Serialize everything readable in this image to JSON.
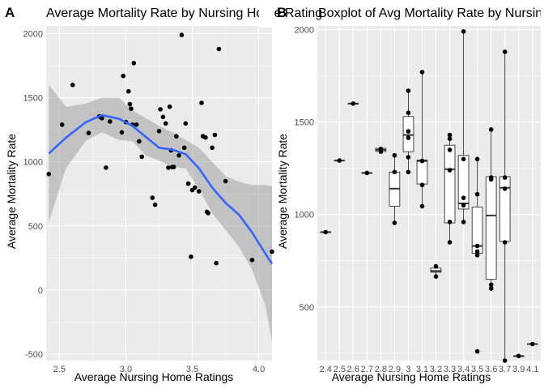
{
  "panels": [
    {
      "tag": "A",
      "title": "Average Mortality Rate by Nursing Home Rating",
      "xlabel": "Average Nursing Home Ratings",
      "ylabel": "Average Mortality Rate",
      "x_ticks": [
        "2.5",
        "3.0",
        "3.5",
        "4.0"
      ],
      "y_ticks": [
        "-500",
        "0",
        "500",
        "1000",
        "1500",
        "2000"
      ]
    },
    {
      "tag": "B",
      "title": "Boxplot of Avg Mortality Rate by Nursing Home Rating",
      "xlabel": "Average Nursing Home Ratings",
      "ylabel": "Average Mortality Rate",
      "y_ticks": [
        "500",
        "1000",
        "1500",
        "2000"
      ]
    }
  ],
  "colors": {
    "panel_background": "#ebebeb",
    "grid_major": "#ffffff",
    "point": "#000000",
    "smooth_line": "#3366ff",
    "confidence_band": "#999999",
    "box_fill": "#ffffff"
  },
  "chart_data": [
    {
      "type": "scatter",
      "geom": "point + loess smooth with 95% confidence band",
      "xlim": [
        2.4,
        4.1
      ],
      "ylim": [
        -550,
        2060
      ],
      "x_ticks": [
        2.5,
        3.0,
        3.5,
        4.0
      ],
      "y_ticks": [
        -500,
        0,
        500,
        1000,
        1500,
        2000
      ],
      "grid": true,
      "points": [
        [
          2.42,
          905
        ],
        [
          2.52,
          1290
        ],
        [
          2.6,
          1600
        ],
        [
          2.72,
          1225
        ],
        [
          2.8,
          1355
        ],
        [
          2.82,
          1340
        ],
        [
          2.85,
          955
        ],
        [
          2.88,
          1315
        ],
        [
          2.97,
          1230
        ],
        [
          2.98,
          1670
        ],
        [
          3.0,
          1310
        ],
        [
          3.02,
          1550
        ],
        [
          3.03,
          1450
        ],
        [
          3.04,
          1415
        ],
        [
          3.05,
          1290
        ],
        [
          3.06,
          1770
        ],
        [
          3.08,
          1290
        ],
        [
          3.1,
          1160
        ],
        [
          3.12,
          1040
        ],
        [
          3.2,
          720
        ],
        [
          3.22,
          665
        ],
        [
          3.25,
          1240
        ],
        [
          3.26,
          1410
        ],
        [
          3.28,
          1350
        ],
        [
          3.3,
          1300
        ],
        [
          3.32,
          955
        ],
        [
          3.33,
          1430
        ],
        [
          3.34,
          1090
        ],
        [
          3.35,
          960
        ],
        [
          3.36,
          960
        ],
        [
          3.38,
          1200
        ],
        [
          3.4,
          1050
        ],
        [
          3.42,
          1990
        ],
        [
          3.44,
          1110
        ],
        [
          3.45,
          1300
        ],
        [
          3.47,
          830
        ],
        [
          3.49,
          260
        ],
        [
          3.5,
          780
        ],
        [
          3.52,
          800
        ],
        [
          3.55,
          770
        ],
        [
          3.57,
          1460
        ],
        [
          3.58,
          1200
        ],
        [
          3.6,
          1190
        ],
        [
          3.61,
          610
        ],
        [
          3.62,
          600
        ],
        [
          3.65,
          1110
        ],
        [
          3.67,
          1210
        ],
        [
          3.68,
          210
        ],
        [
          3.7,
          1880
        ],
        [
          3.75,
          850
        ],
        [
          3.95,
          235
        ],
        [
          4.1,
          300
        ]
      ],
      "smooth": {
        "x": [
          2.42,
          2.55,
          2.7,
          2.82,
          2.95,
          3.05,
          3.15,
          3.25,
          3.35,
          3.45,
          3.55,
          3.65,
          3.75,
          3.85,
          3.95,
          4.05,
          4.1
        ],
        "y": [
          1065,
          1190,
          1310,
          1365,
          1335,
          1280,
          1195,
          1110,
          1095,
          1060,
          950,
          800,
          680,
          590,
          450,
          285,
          205
        ],
        "lower": [
          530,
          950,
          1165,
          1230,
          1170,
          1160,
          1050,
          1010,
          960,
          950,
          790,
          600,
          470,
          340,
          160,
          -120,
          -400
        ],
        "upper": [
          1600,
          1430,
          1455,
          1500,
          1500,
          1400,
          1340,
          1280,
          1230,
          1170,
          1110,
          1000,
          890,
          845,
          820,
          820,
          810
        ]
      }
    },
    {
      "type": "boxplot",
      "geom": "boxplot + jittered points",
      "categories": [
        "2.4",
        "2.5",
        "2.6",
        "2.7",
        "2.8",
        "2.9",
        "3",
        "3.1",
        "3.2",
        "3.3",
        "3.4",
        "3.5",
        "3.6",
        "3.7",
        "3.9",
        "4.1"
      ],
      "ylim": [
        210,
        2020
      ],
      "y_ticks": [
        500,
        1000,
        1500,
        2000
      ],
      "grid": true,
      "boxes": [
        {
          "min": 905,
          "q1": 905,
          "median": 905,
          "q3": 905,
          "max": 905
        },
        {
          "min": 1292,
          "q1": 1292,
          "median": 1292,
          "q3": 1292,
          "max": 1292
        },
        {
          "min": 1600,
          "q1": 1600,
          "median": 1600,
          "q3": 1600,
          "max": 1600
        },
        {
          "min": 1225,
          "q1": 1225,
          "median": 1225,
          "q3": 1225,
          "max": 1225
        },
        {
          "min": 1340,
          "q1": 1342,
          "median": 1350,
          "q3": 1358,
          "max": 1360
        },
        {
          "min": 955,
          "q1": 1045,
          "median": 1140,
          "q3": 1230,
          "max": 1320
        },
        {
          "min": 1230,
          "q1": 1340,
          "median": 1430,
          "q3": 1530,
          "max": 1670
        },
        {
          "min": 1045,
          "q1": 1165,
          "median": 1290,
          "q3": 1295,
          "max": 1770
        },
        {
          "min": 665,
          "q1": 688,
          "median": 695,
          "q3": 710,
          "max": 720
        },
        {
          "min": 850,
          "q1": 955,
          "median": 1245,
          "q3": 1375,
          "max": 1430
        },
        {
          "min": 960,
          "q1": 1030,
          "median": 1060,
          "q3": 1320,
          "max": 1990
        },
        {
          "min": 780,
          "q1": 790,
          "median": 830,
          "q3": 1040,
          "max": 1300
        },
        {
          "min": 600,
          "q1": 650,
          "median": 995,
          "q3": 1205,
          "max": 1460
        },
        {
          "min": 210,
          "q1": 855,
          "median": 1145,
          "q3": 1205,
          "max": 1880
        },
        {
          "min": 235,
          "q1": 235,
          "median": 235,
          "q3": 235,
          "max": 235
        },
        {
          "min": 300,
          "q1": 300,
          "median": 300,
          "q3": 300,
          "max": 300
        }
      ],
      "points": [
        [
          0,
          905
        ],
        [
          1,
          1292
        ],
        [
          2,
          1600
        ],
        [
          3,
          1225
        ],
        [
          4,
          1355
        ],
        [
          4,
          1340
        ],
        [
          5,
          955
        ],
        [
          5,
          1320
        ],
        [
          5,
          1230
        ],
        [
          6,
          1670
        ],
        [
          6,
          1550
        ],
        [
          6,
          1450
        ],
        [
          6,
          1415
        ],
        [
          6,
          1310
        ],
        [
          6,
          1230
        ],
        [
          7,
          1770
        ],
        [
          7,
          1290
        ],
        [
          7,
          1160
        ],
        [
          7,
          1045
        ],
        [
          8,
          720
        ],
        [
          8,
          665
        ],
        [
          9,
          1430
        ],
        [
          9,
          1410
        ],
        [
          9,
          1350
        ],
        [
          9,
          1240
        ],
        [
          9,
          960
        ],
        [
          9,
          850
        ],
        [
          10,
          1990
        ],
        [
          10,
          1300
        ],
        [
          10,
          1090
        ],
        [
          10,
          1050
        ],
        [
          10,
          960
        ],
        [
          11,
          1300
        ],
        [
          11,
          1110
        ],
        [
          11,
          830
        ],
        [
          11,
          800
        ],
        [
          11,
          780
        ],
        [
          11,
          260
        ],
        [
          12,
          1460
        ],
        [
          12,
          1200
        ],
        [
          12,
          1190
        ],
        [
          12,
          620
        ],
        [
          12,
          600
        ],
        [
          13,
          1880
        ],
        [
          13,
          1200
        ],
        [
          13,
          1140
        ],
        [
          13,
          850
        ],
        [
          13,
          210
        ],
        [
          14,
          235
        ],
        [
          15,
          300
        ]
      ]
    }
  ]
}
